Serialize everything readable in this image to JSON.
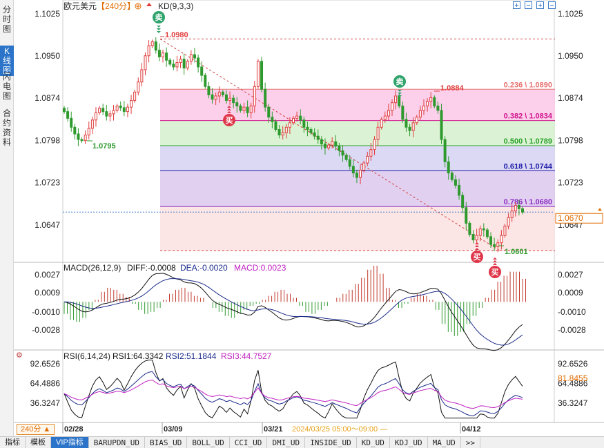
{
  "sidebar": {
    "tabs": [
      {
        "label": "分时图",
        "active": false
      },
      {
        "label": "K线图",
        "active": true
      },
      {
        "label": "闪电图",
        "active": false
      },
      {
        "label": "合约资料",
        "active": false
      }
    ]
  },
  "header": {
    "symbol": "欧元美元",
    "period_tag": "【240分】",
    "indicator": "KD(9,3,3)"
  },
  "price_axis": {
    "labels": [
      "1.1025",
      "1.0950",
      "1.0874",
      "1.0798",
      "1.0723",
      "1.0647"
    ]
  },
  "current_price": "1.0670",
  "price_annotations": {
    "high_1": "1.0980",
    "low_1": "1.0795",
    "high_2": "1.0884",
    "low_2": "1.0601"
  },
  "fib_levels": [
    {
      "ratio": "0.236",
      "price": "1.0890",
      "label": "0.236 \\ 1.0890",
      "color": "#e87070"
    },
    {
      "ratio": "0.382",
      "price": "1.0834",
      "label": "0.382 \\ 1.0834",
      "color": "#d0148c"
    },
    {
      "ratio": "0.500",
      "price": "1.0789",
      "label": "0.500 \\ 1.0789",
      "color": "#2aa12a"
    },
    {
      "ratio": "0.618",
      "price": "1.0744",
      "label": "0.618 \\ 1.0744",
      "color": "#1a1aa8"
    },
    {
      "ratio": "0.786",
      "price": "1.0680",
      "label": "0.786 \\ 1.0680",
      "color": "#8a2ac0"
    }
  ],
  "signals": {
    "buy": "买",
    "sell": "卖"
  },
  "macd": {
    "title": "MACD(26,12,9)",
    "diff": "DIFF:-0.0008",
    "dea": "DEA:-0.0020",
    "macd": "MACD:0.0023",
    "axis": [
      "0.0027",
      "0.0009",
      "-0.0010",
      "-0.0028"
    ]
  },
  "rsi": {
    "title": "RSI(6,14,24)",
    "rsi1": "RSI1:64.3342",
    "rsi2": "RSI2:51.1844",
    "rsi3": "RSI3:44.7527",
    "axis_left": [
      "92.6526",
      "64.4886",
      "36.3247"
    ],
    "axis_right": [
      "92.6526",
      "64.4886",
      "36.3247"
    ],
    "current": "81.8455"
  },
  "dates": [
    "02/28",
    "03/09",
    "03/21",
    "04/12"
  ],
  "crosshair_time": "2024/03/25 05:00～09:00 —",
  "period_badge": "240分 ▲",
  "bottom_tabs": [
    {
      "label": "指标",
      "active": false
    },
    {
      "label": "模板",
      "active": false
    },
    {
      "label": "VIP指标",
      "active": true
    },
    {
      "label": "BARUPDN_UD",
      "active": false
    },
    {
      "label": "BIAS_UD",
      "active": false
    },
    {
      "label": "BOLL_UD",
      "active": false
    },
    {
      "label": "CCI_UD",
      "active": false
    },
    {
      "label": "DMI_UD",
      "active": false
    },
    {
      "label": "INSIDE_UD",
      "active": false
    },
    {
      "label": "KD_UD",
      "active": false
    },
    {
      "label": "KDJ_UD",
      "active": false
    },
    {
      "label": "MA_UD",
      "active": false
    },
    {
      "label": ">>",
      "active": false
    }
  ],
  "colors": {
    "up": "#e03b3b",
    "down": "#2e9a2e",
    "diff": "#111111",
    "dea": "#1a2a8a",
    "macd_label": "#c020c0",
    "rsi2": "#1a2a8a",
    "rsi3": "#c020c0",
    "accent": "#e06b00"
  },
  "chart_data": {
    "type": "candlestick",
    "price_axis_ticks": [
      1.1025,
      1.095,
      1.0874,
      1.0798,
      1.0723,
      1.0647
    ],
    "ylim": [
      1.0601,
      1.1025
    ],
    "closes": [
      1.085,
      1.0838,
      1.0822,
      1.081,
      1.08,
      1.0798,
      1.0808,
      1.082,
      1.0835,
      1.0848,
      1.0856,
      1.085,
      1.0842,
      1.0846,
      1.0852,
      1.086,
      1.0857,
      1.085,
      1.0858,
      1.087,
      1.0885,
      1.0903,
      1.0925,
      1.095,
      1.0968,
      1.0975,
      1.096,
      1.0948,
      1.0955,
      1.0942,
      1.0935,
      1.093,
      1.0938,
      1.0944,
      1.0928,
      1.094,
      1.0952,
      1.0946,
      1.093,
      1.0915,
      1.0895,
      1.088,
      1.0872,
      1.0878,
      1.0885,
      1.088,
      1.087,
      1.0874,
      1.0866,
      1.086,
      1.0852,
      1.0858,
      1.0848,
      1.086,
      1.0895,
      1.094,
      1.089,
      1.0858,
      1.084,
      1.0832,
      1.0818,
      1.0808,
      1.0812,
      1.0822,
      1.083,
      1.0838,
      1.0842,
      1.0835,
      1.0822,
      1.0818,
      1.0812,
      1.0806,
      1.08,
      1.0792,
      1.0785,
      1.079,
      1.0796,
      1.0788,
      1.078,
      1.0772,
      1.0764,
      1.0752,
      1.074,
      1.0732,
      1.0745,
      1.0758,
      1.077,
      1.0782,
      1.08,
      1.0822,
      1.0836,
      1.0842,
      1.0852,
      1.0866,
      1.0878,
      1.086,
      1.0836,
      1.0822,
      1.0816,
      1.083,
      1.084,
      1.0852,
      1.086,
      1.0868,
      1.0875,
      1.086,
      1.0852,
      1.08,
      1.076,
      1.074,
      1.0728,
      1.0718,
      1.07,
      1.0678,
      1.065,
      1.063,
      1.062,
      1.0628,
      1.064,
      1.0638,
      1.0626,
      1.0612,
      1.0608,
      1.0615,
      1.0628,
      1.0645,
      1.066,
      1.0672,
      1.0682,
      1.0676,
      1.067
    ],
    "macd_histogram": [
      -0.0012,
      -0.0018,
      -0.002,
      -0.0016,
      -0.0008,
      0.0002,
      0.001,
      0.0014,
      0.0012,
      0.0008,
      0.0005,
      -0.0002,
      -0.0008,
      -0.0012,
      -0.001,
      -0.0006,
      0.0002,
      0.0008,
      0.0012,
      0.0014,
      0.001,
      0.0006,
      0.0004,
      0.0,
      -0.0006,
      -0.001,
      -0.0014,
      -0.0016,
      -0.0012,
      -0.0008,
      -0.0004,
      -0.0002,
      0.0002,
      0.0006,
      0.001,
      0.0012,
      0.0008,
      0.0004,
      -0.0004,
      -0.001,
      -0.0012,
      -0.0008,
      -0.0004,
      0.0,
      0.0004,
      0.0008,
      0.0012,
      0.0018,
      0.0024,
      0.0032,
      0.0036,
      0.0028,
      0.0014,
      0.0002,
      -0.0006,
      -0.0002,
      0.0004,
      0.0008,
      0.0006,
      0.0002,
      -0.0008,
      -0.0022,
      -0.003,
      -0.0034,
      -0.003,
      -0.0022,
      -0.0014,
      -0.0006,
      0.0004,
      0.0012,
      0.002,
      0.0026,
      0.003,
      0.003,
      0.0023
    ],
    "rsi_axis_ticks": [
      92.6526,
      64.4886,
      36.3247
    ]
  }
}
